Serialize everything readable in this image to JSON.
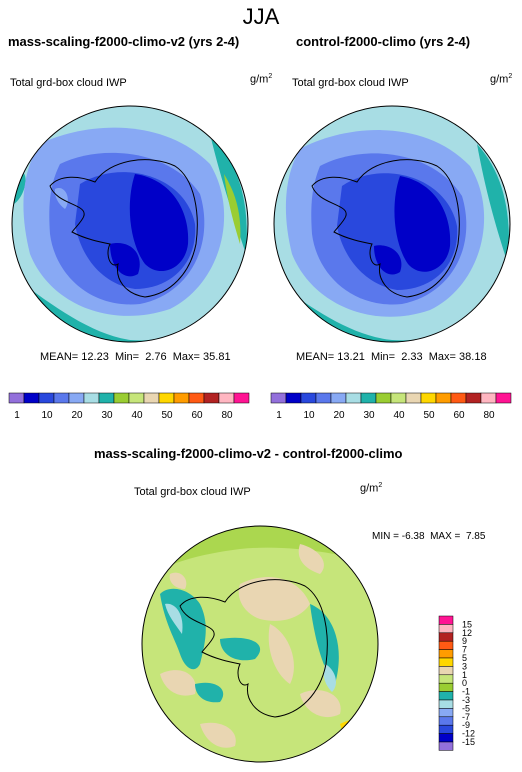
{
  "season": "JJA",
  "colors": {
    "seq": [
      "#9370db",
      "#0000c8",
      "#2948dd",
      "#5a78ec",
      "#88a9f4",
      "#a8dde4",
      "#20b2aa",
      "#9acd32",
      "#c6e57a",
      "#e9d6b2",
      "#ffd700",
      "#ff9c00",
      "#ff5a14",
      "#b22222",
      "#ffb6c1",
      "#ff1493"
    ],
    "diff": [
      "#9370db",
      "#0000c8",
      "#2948dd",
      "#5a78ec",
      "#88a9f4",
      "#a8dde4",
      "#20b2aa",
      "#9acd32",
      "#c6e57a",
      "#e9d6b2",
      "#ffd700",
      "#ff9c00",
      "#ff5a14",
      "#b22222",
      "#ffb6c1",
      "#ff1493"
    ]
  },
  "panels": [
    {
      "title": "mass-scaling-f2000-climo-v2 (yrs 2-4)",
      "variable": "Total grd-box cloud IWP",
      "units": "g/m",
      "units_sup": "2",
      "stats": {
        "mean_label": "MEAN=",
        "mean": "12.23",
        "min_label": "Min=",
        "min": "2.76",
        "max_label": "Max=",
        "max": "35.81"
      }
    },
    {
      "title": "control-f2000-climo (yrs 2-4)",
      "variable": "Total grd-box cloud IWP",
      "units": "g/m",
      "units_sup": "2",
      "stats": {
        "mean_label": "MEAN=",
        "mean": "13.21",
        "min_label": "Min=",
        "min": "2.33",
        "max_label": "Max=",
        "max": "38.18"
      }
    }
  ],
  "seq_colorbar": {
    "labels": [
      "1",
      "10",
      "20",
      "30",
      "40",
      "50",
      "60",
      "80"
    ]
  },
  "diff_panel": {
    "title": "mass-scaling-f2000-climo-v2 - control-f2000-climo",
    "variable": "Total grd-box cloud IWP",
    "units": "g/m",
    "units_sup": "2",
    "minmax": {
      "min_label": "MIN =",
      "min": "-6.38",
      "max_label": "MAX =",
      "max": "7.85"
    },
    "colorbar_labels": [
      "15",
      "12",
      "9",
      "7",
      "5",
      "3",
      "1",
      "0",
      "-1",
      "-3",
      "-5",
      "-7",
      "-9",
      "-12",
      "-15"
    ]
  }
}
